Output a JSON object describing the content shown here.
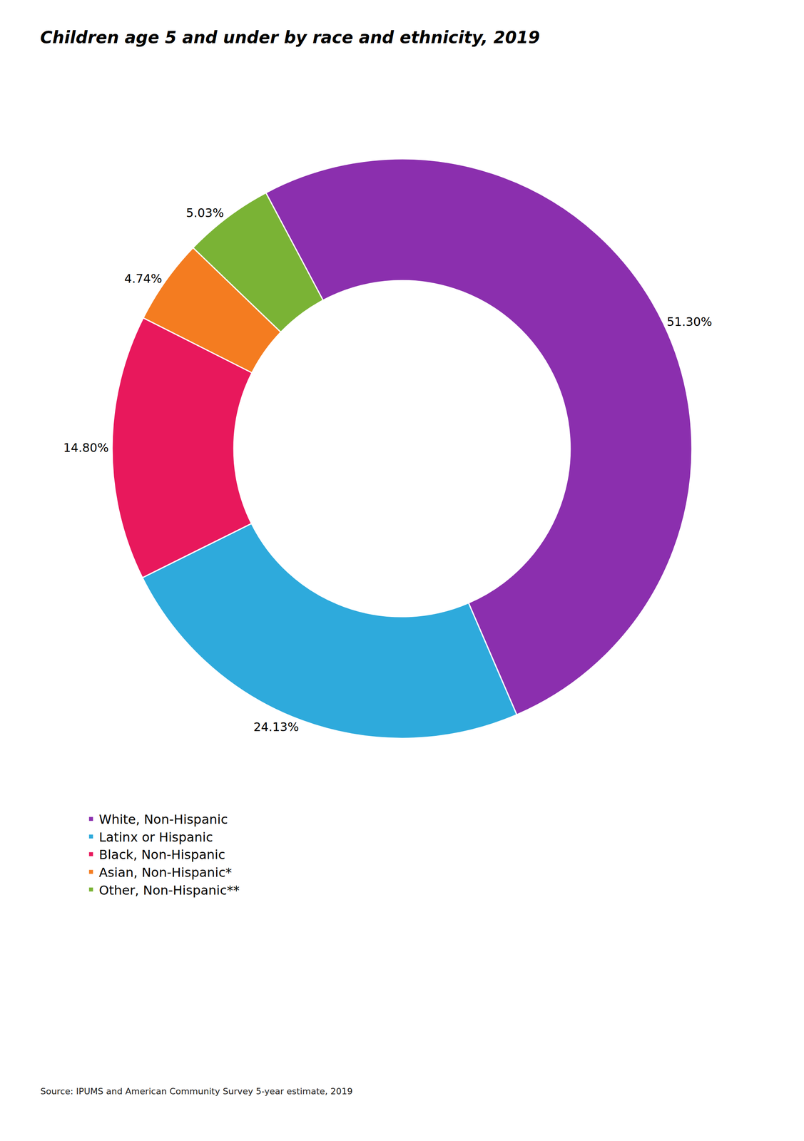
{
  "chart_data": {
    "type": "pie",
    "title": "Children age 5 and under by race and ethnicity, 2019",
    "categories": [
      "White, Non-Hispanic",
      "Latinx or Hispanic",
      "Black, Non-Hispanic",
      "Asian, Non-Hispanic*",
      "Other, Non-Hispanic**"
    ],
    "values": [
      51.3,
      24.13,
      14.8,
      4.74,
      5.03
    ],
    "value_labels": [
      "51.30%",
      "24.13%",
      "14.80%",
      "4.74%",
      "5.03%"
    ],
    "colors": [
      "#8B2FAE",
      "#2EAADC",
      "#E8185C",
      "#F47C20",
      "#7AB335"
    ],
    "data_labels": true,
    "legend": "lower left",
    "source": "Source: IPUMS and American Community Survey 5-year estimate, 2019"
  }
}
